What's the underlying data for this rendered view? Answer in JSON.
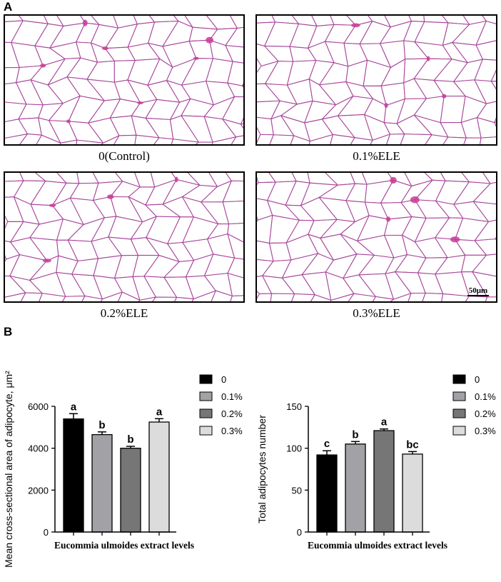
{
  "panel_a": {
    "letter": "A",
    "images": [
      {
        "caption": "0(Control)"
      },
      {
        "caption": "0.1%ELE"
      },
      {
        "caption": "0.2%ELE"
      },
      {
        "caption": "0.3%ELE",
        "scalebar": "50μm"
      }
    ],
    "colors": {
      "stroke": "#a8469a",
      "fill": "#ffffff",
      "dense": "#c93b95"
    }
  },
  "panel_b": {
    "letter": "B"
  },
  "chart_data": [
    {
      "type": "bar",
      "xlabel": "Eucommia ulmoides extract levels",
      "ylabel": "Mean cross-sectional area of adipocyte, μm²",
      "ylim": [
        0,
        6000
      ],
      "yticks": [
        "0",
        "2000",
        "4000",
        "6000"
      ],
      "series": [
        {
          "name": "0",
          "value": 5400,
          "error": 250,
          "letter": "a",
          "color": "#000000"
        },
        {
          "name": "0.1%",
          "value": 4650,
          "error": 130,
          "letter": "b",
          "color": "#a2a2a6"
        },
        {
          "name": "0.2%",
          "value": 4000,
          "error": 90,
          "letter": "b",
          "color": "#767676"
        },
        {
          "name": "0.3%",
          "value": 5250,
          "error": 160,
          "letter": "a",
          "color": "#dcdcdc"
        }
      ],
      "legend": "right"
    },
    {
      "type": "bar",
      "xlabel": "Eucommia ulmoides extract levels",
      "ylabel": "Total adipocytes number",
      "ylim": [
        0,
        150
      ],
      "yticks": [
        "0",
        "50",
        "100",
        "150"
      ],
      "series": [
        {
          "name": "0",
          "value": 92,
          "error": 5,
          "letter": "c",
          "color": "#000000"
        },
        {
          "name": "0.1%",
          "value": 105,
          "error": 3,
          "letter": "b",
          "color": "#a2a2a6"
        },
        {
          "name": "0.2%",
          "value": 121,
          "error": 2,
          "letter": "a",
          "color": "#767676"
        },
        {
          "name": "0.3%",
          "value": 93,
          "error": 3,
          "letter": "bc",
          "color": "#dcdcdc"
        }
      ],
      "legend": "right"
    }
  ]
}
